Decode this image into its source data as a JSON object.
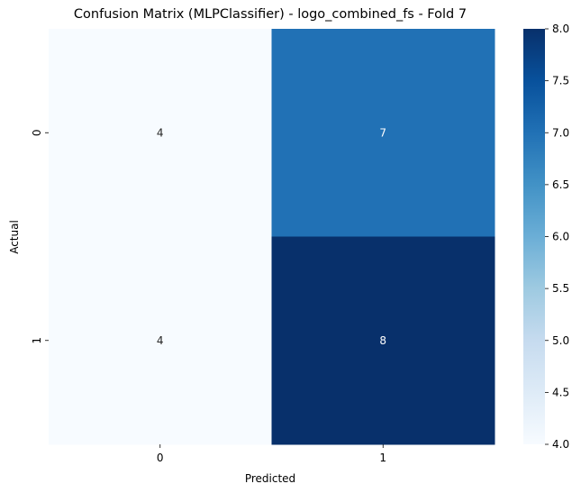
{
  "chart_data": {
    "type": "heatmap",
    "title": "Confusion Matrix (MLPClassifier) - logo_combined_fs - Fold 7",
    "xlabel": "Predicted",
    "ylabel": "Actual",
    "x_categories": [
      "0",
      "1"
    ],
    "y_categories": [
      "0",
      "1"
    ],
    "values": [
      [
        4,
        7
      ],
      [
        4,
        8
      ]
    ],
    "colormap": "Blues",
    "color_range": [
      4,
      8
    ],
    "colorbar_ticks": [
      "4.0",
      "4.5",
      "5.0",
      "5.5",
      "6.0",
      "6.5",
      "7.0",
      "7.5",
      "8.0"
    ],
    "colorbar_tick_values": [
      4.0,
      4.5,
      5.0,
      5.5,
      6.0,
      6.5,
      7.0,
      7.5,
      8.0
    ],
    "cell_text_light": "#ffffff",
    "cell_text_dark": "#262626"
  }
}
